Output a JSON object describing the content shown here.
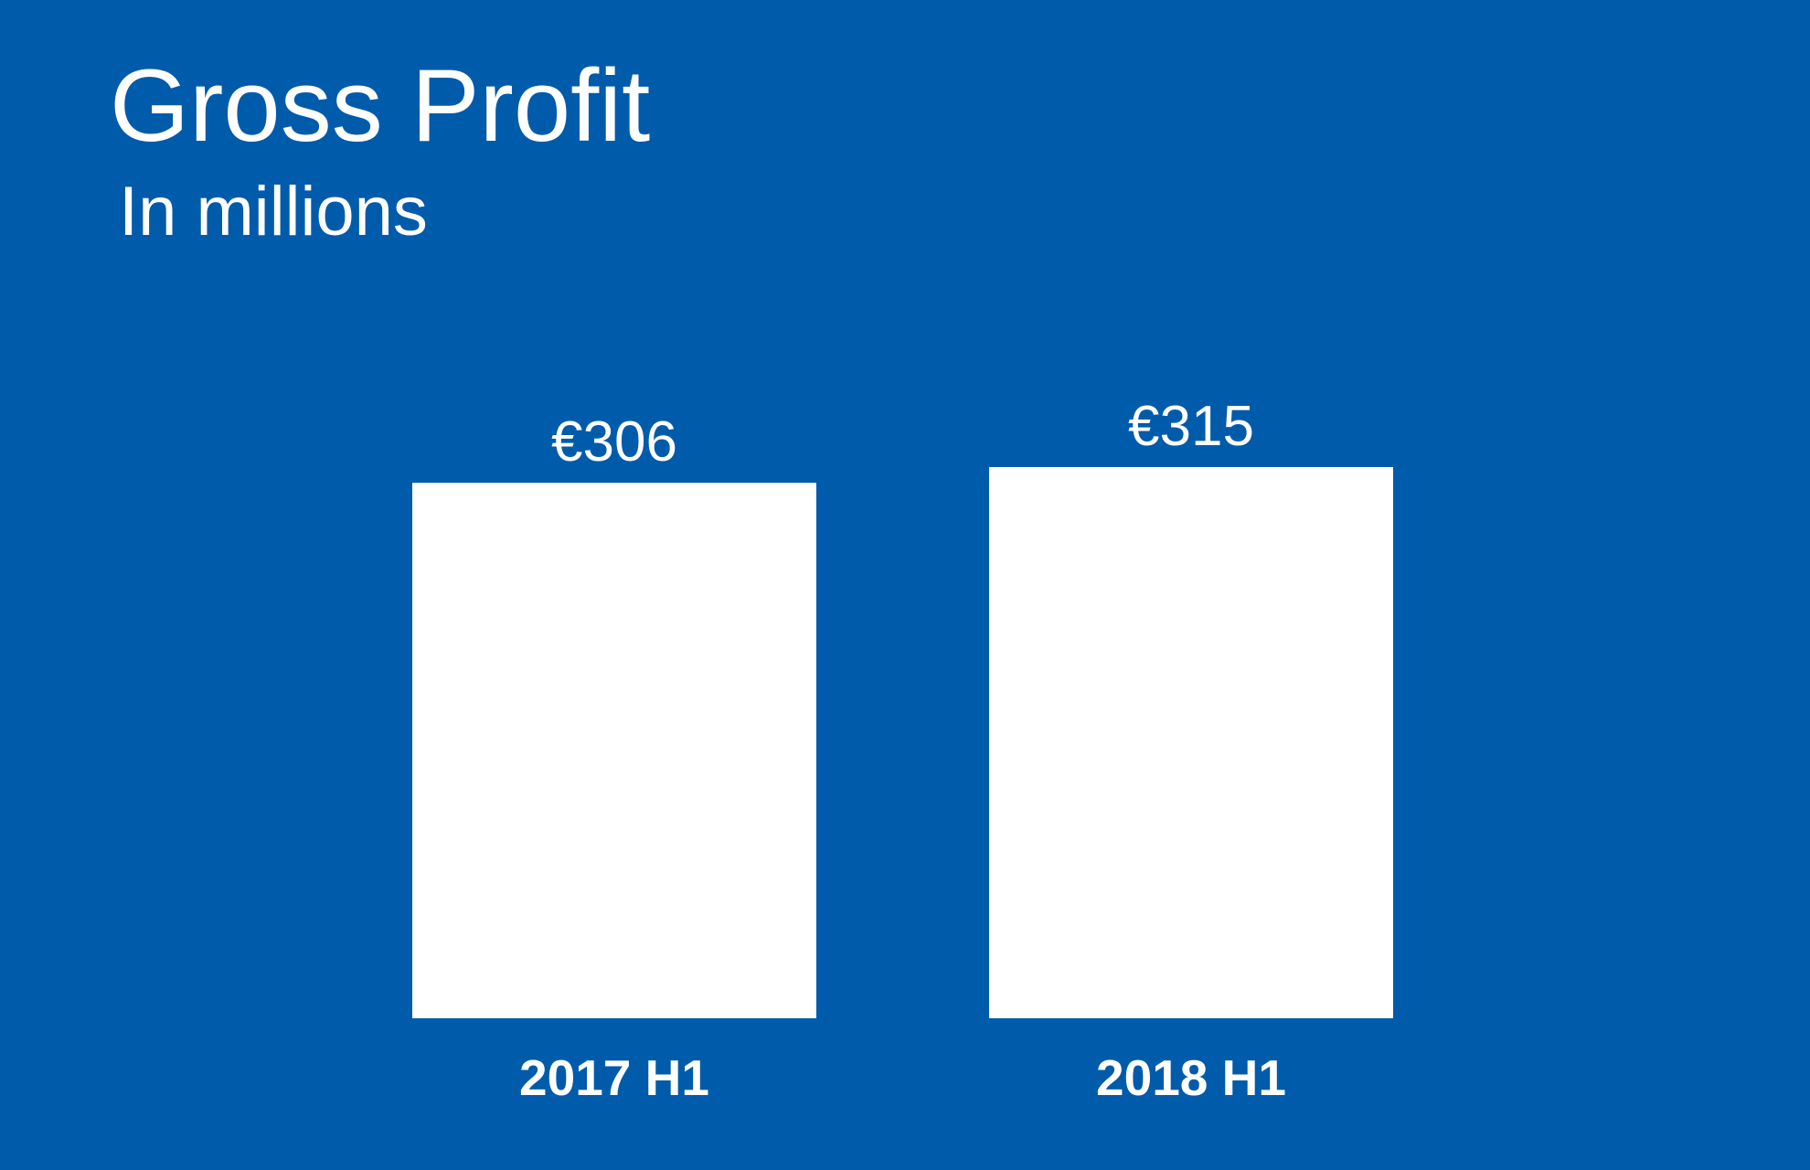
{
  "title": "Gross Profit",
  "subtitle": "In millions",
  "colors": {
    "background": "#005bab",
    "bar": "#ffffff",
    "text": "#ffffff"
  },
  "chart_data": {
    "type": "bar",
    "title": "Gross Profit",
    "subtitle": "In millions",
    "categories": [
      "2017 H1",
      "2018 H1"
    ],
    "values": [
      306,
      315
    ],
    "value_labels": [
      "€306",
      "€315"
    ],
    "xlabel": "",
    "ylabel": "",
    "ylim": [
      0,
      315
    ],
    "grid": false,
    "legend": "none"
  }
}
